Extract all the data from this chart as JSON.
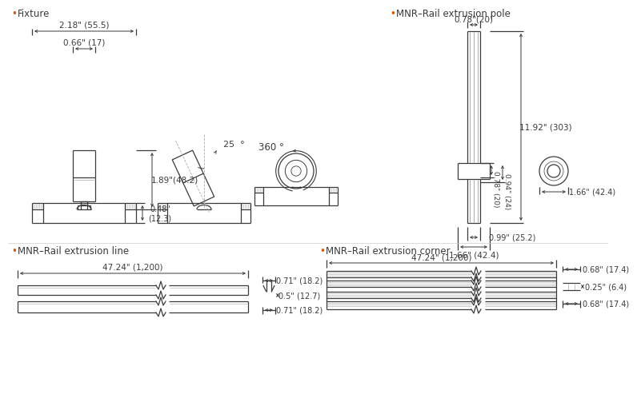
{
  "bg_color": "#ffffff",
  "line_color": "#3a3a3a",
  "dim_color": "#3a3a3a",
  "gray_color": "#aaaaaa",
  "bullet_color": "#e05000",
  "fixture_dims": {
    "width_label": "2.18\" (55.5)",
    "inner_width_label": "0.66\" (17)",
    "height_label": "1.89\"(48.2)",
    "track_height_label": "0.48\"\n(12.3)",
    "angle_label": "25",
    "rotation_label": "360"
  },
  "pole_dims": {
    "top_width_label": "0.78\"(20)",
    "height_label": "11.92\" (303)",
    "mid_height1_label": "0.78\" (20)",
    "mid_height2_label": "0.94\" (24)",
    "base_width1_label": "0.99\" (25.2)",
    "base_width2_label": "1.66\" (42.4)",
    "end_width_label": "1.66\" (42.4)"
  },
  "line_dims": {
    "length_label": "47.24\" (1,200)",
    "cross_width_label": "0.71\" (18.2)",
    "cross_mid_label": "0.5\" (12.7)",
    "cross_bot_label": "0.71\" (18.2)"
  },
  "corner_dims": {
    "length_label": "47.24\" (1,200)",
    "cross_top_label": "0.68\" (17.4)",
    "cross_mid_label": "0.25\" (6.4)",
    "cross_bot_label": "0.68\" (17.4)"
  }
}
